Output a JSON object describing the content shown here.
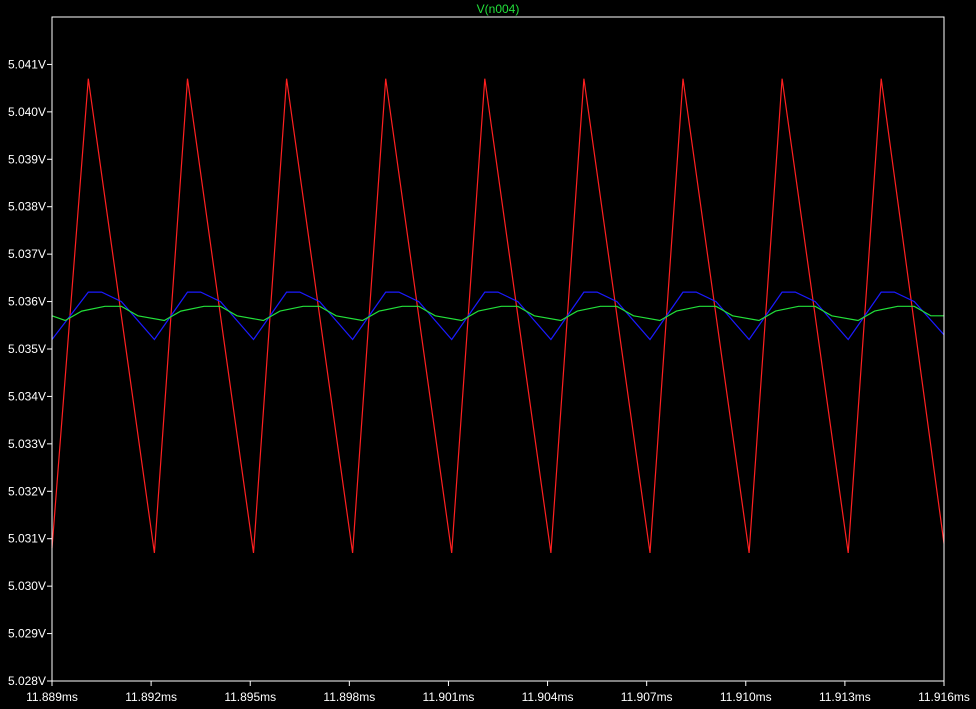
{
  "chart_data": {
    "type": "line",
    "title": "V(n004)",
    "title_color": "#22e03a",
    "xlabel": "",
    "ylabel": "",
    "x_unit": "ms",
    "y_unit": "V",
    "xlim": [
      11.889,
      11.916
    ],
    "ylim": [
      5.028,
      5.042
    ],
    "x_ticks": [
      11.889,
      11.892,
      11.895,
      11.898,
      11.901,
      11.904,
      11.907,
      11.91,
      11.913,
      11.916
    ],
    "x_tick_labels": [
      "11.889ms",
      "11.892ms",
      "11.895ms",
      "11.898ms",
      "11.901ms",
      "11.904ms",
      "11.907ms",
      "11.910ms",
      "11.913ms",
      "11.916ms"
    ],
    "y_ticks": [
      5.028,
      5.029,
      5.03,
      5.031,
      5.032,
      5.033,
      5.034,
      5.035,
      5.036,
      5.037,
      5.038,
      5.039,
      5.04,
      5.041
    ],
    "y_tick_labels": [
      "5.028V",
      "5.029V",
      "5.030V",
      "5.031V",
      "5.032V",
      "5.033V",
      "5.034V",
      "5.035V",
      "5.036V",
      "5.037V",
      "5.038V",
      "5.039V",
      "5.040V",
      "5.041V"
    ],
    "grid": false,
    "background": "#000000",
    "axis_color": "#ffffff",
    "series": [
      {
        "color": "#ff2020",
        "x": [
          11.889,
          11.8901,
          11.8921,
          11.8931,
          11.8951,
          11.8961,
          11.8981,
          11.8991,
          11.9011,
          11.9021,
          11.9041,
          11.9051,
          11.9071,
          11.9081,
          11.9101,
          11.9111,
          11.9131,
          11.9141,
          11.916
        ],
        "y": [
          5.0308,
          5.0407,
          5.0307,
          5.0407,
          5.0307,
          5.0407,
          5.0307,
          5.0407,
          5.0307,
          5.0407,
          5.0307,
          5.0407,
          5.0307,
          5.0407,
          5.0307,
          5.0407,
          5.0307,
          5.0407,
          5.0309
        ]
      },
      {
        "color": "#1a1aff",
        "x": [
          11.889,
          11.8901,
          11.8905,
          11.8911,
          11.8921,
          11.8931,
          11.8935,
          11.8941,
          11.8951,
          11.8961,
          11.8965,
          11.8971,
          11.8981,
          11.8991,
          11.8995,
          11.9001,
          11.9011,
          11.9021,
          11.9025,
          11.9031,
          11.9041,
          11.9051,
          11.9055,
          11.9061,
          11.9071,
          11.9081,
          11.9085,
          11.9091,
          11.9101,
          11.9111,
          11.9115,
          11.9121,
          11.9131,
          11.9141,
          11.9145,
          11.9151,
          11.916
        ],
        "y": [
          5.0352,
          5.0362,
          5.0362,
          5.036,
          5.0352,
          5.0362,
          5.0362,
          5.036,
          5.0352,
          5.0362,
          5.0362,
          5.036,
          5.0352,
          5.0362,
          5.0362,
          5.036,
          5.0352,
          5.0362,
          5.0362,
          5.036,
          5.0352,
          5.0362,
          5.0362,
          5.036,
          5.0352,
          5.0362,
          5.0362,
          5.036,
          5.0352,
          5.0362,
          5.0362,
          5.036,
          5.0352,
          5.0362,
          5.0362,
          5.036,
          5.0353
        ]
      },
      {
        "color": "#22e03a",
        "x": [
          11.889,
          11.8894,
          11.8899,
          11.8906,
          11.8911,
          11.8916,
          11.8924,
          11.8929,
          11.8936,
          11.8941,
          11.8946,
          11.8954,
          11.8959,
          11.8966,
          11.8971,
          11.8976,
          11.8984,
          11.8989,
          11.8996,
          11.9001,
          11.9006,
          11.9014,
          11.9019,
          11.9026,
          11.9031,
          11.9036,
          11.9044,
          11.9049,
          11.9056,
          11.9061,
          11.9066,
          11.9074,
          11.9079,
          11.9086,
          11.9091,
          11.9096,
          11.9104,
          11.9109,
          11.9116,
          11.9121,
          11.9126,
          11.9134,
          11.9139,
          11.9146,
          11.9151,
          11.9156,
          11.916
        ],
        "y": [
          5.0357,
          5.0356,
          5.0358,
          5.0359,
          5.0359,
          5.0357,
          5.0356,
          5.0358,
          5.0359,
          5.0359,
          5.0357,
          5.0356,
          5.0358,
          5.0359,
          5.0359,
          5.0357,
          5.0356,
          5.0358,
          5.0359,
          5.0359,
          5.0357,
          5.0356,
          5.0358,
          5.0359,
          5.0359,
          5.0357,
          5.0356,
          5.0358,
          5.0359,
          5.0359,
          5.0357,
          5.0356,
          5.0358,
          5.0359,
          5.0359,
          5.0357,
          5.0356,
          5.0358,
          5.0359,
          5.0359,
          5.0357,
          5.0356,
          5.0358,
          5.0359,
          5.0359,
          5.0357,
          5.0357
        ]
      }
    ]
  }
}
